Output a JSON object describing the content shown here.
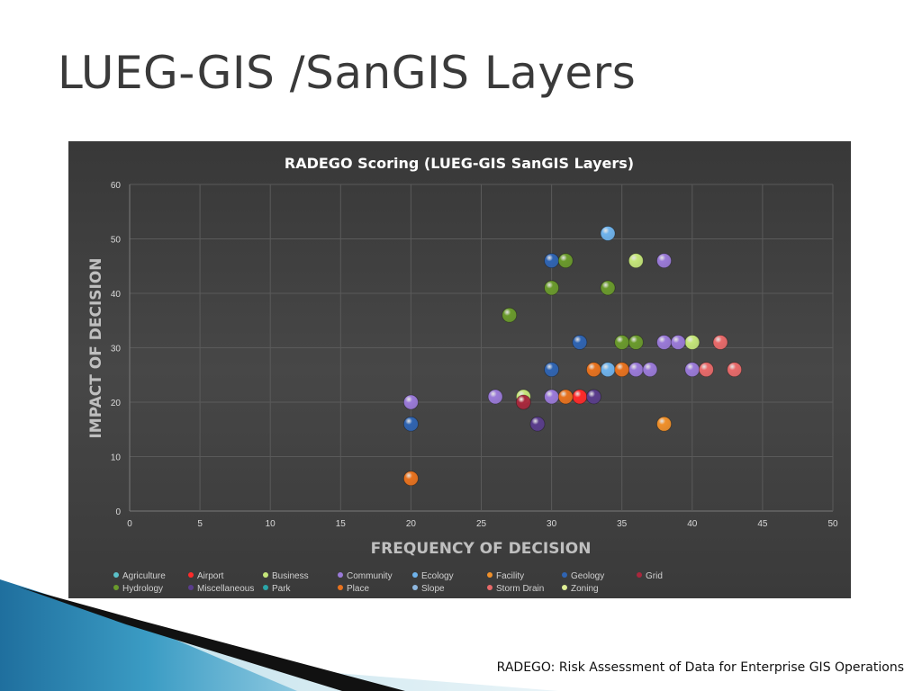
{
  "slide": {
    "title": "LUEG-GIS /SanGIS Layers",
    "footer": "RADEGO: Risk Assessment of Data for Enterprise GIS Operations"
  },
  "colors": {
    "panel_bg": "#3f3f3f",
    "gridline": "#5a5a5a",
    "axis_text": "#d9d9d9",
    "axis_title": "#bfbfbf"
  },
  "chart_data": {
    "type": "scatter",
    "title": "RADEGO Scoring (LUEG-GIS SanGIS Layers)",
    "xlabel": "FREQUENCY OF DECISION",
    "ylabel": "IMPACT OF DECISION",
    "xlim": [
      0,
      50
    ],
    "ylim": [
      0,
      60
    ],
    "xticks": [
      0,
      5,
      10,
      15,
      20,
      25,
      30,
      35,
      40,
      45,
      50
    ],
    "yticks": [
      0,
      10,
      20,
      30,
      40,
      50,
      60
    ],
    "grid": true,
    "legend_position": "bottom",
    "series": [
      {
        "name": "Agriculture",
        "color": "#5bc0c8",
        "points": []
      },
      {
        "name": "Airport",
        "color": "#ff2a2a",
        "points": [
          [
            32,
            21
          ]
        ]
      },
      {
        "name": "Business",
        "color": "#c5e67a",
        "points": [
          [
            28,
            21
          ],
          [
            36,
            46
          ],
          [
            40,
            31
          ]
        ]
      },
      {
        "name": "Community",
        "color": "#9a7ad8",
        "points": [
          [
            20,
            20
          ],
          [
            26,
            21
          ],
          [
            30,
            21
          ],
          [
            36,
            26
          ],
          [
            37,
            26
          ],
          [
            38,
            31
          ],
          [
            39,
            31
          ],
          [
            40,
            26
          ],
          [
            38,
            46
          ]
        ]
      },
      {
        "name": "Ecology",
        "color": "#6fb3ec",
        "points": [
          [
            34,
            51
          ],
          [
            34,
            26
          ]
        ]
      },
      {
        "name": "Facility",
        "color": "#f0902a",
        "points": [
          [
            38,
            16
          ]
        ]
      },
      {
        "name": "Geology",
        "color": "#2f64b2",
        "points": [
          [
            20,
            16
          ],
          [
            30,
            26
          ],
          [
            30,
            46
          ],
          [
            32,
            31
          ]
        ]
      },
      {
        "name": "Grid",
        "color": "#a8273c",
        "points": [
          [
            28,
            20
          ]
        ]
      },
      {
        "name": "Hydrology",
        "color": "#6a9a2c",
        "points": [
          [
            27,
            36
          ],
          [
            30,
            41
          ],
          [
            31,
            46
          ],
          [
            34,
            41
          ],
          [
            35,
            31
          ],
          [
            36,
            31
          ]
        ]
      },
      {
        "name": "Miscellaneous",
        "color": "#5a3d8c",
        "points": [
          [
            29,
            16
          ],
          [
            33,
            21
          ]
        ]
      },
      {
        "name": "Park",
        "color": "#2aa5a8",
        "points": []
      },
      {
        "name": "Place",
        "color": "#e8721e",
        "points": [
          [
            20,
            6
          ],
          [
            31,
            21
          ],
          [
            33,
            26
          ],
          [
            35,
            26
          ]
        ]
      },
      {
        "name": "Slope",
        "color": "#8fb8e0",
        "points": []
      },
      {
        "name": "Storm Drain",
        "color": "#e86a6a",
        "points": [
          [
            41,
            26
          ],
          [
            42,
            31
          ],
          [
            43,
            26
          ]
        ]
      },
      {
        "name": "Zoning",
        "color": "#dfee95",
        "points": []
      }
    ]
  }
}
